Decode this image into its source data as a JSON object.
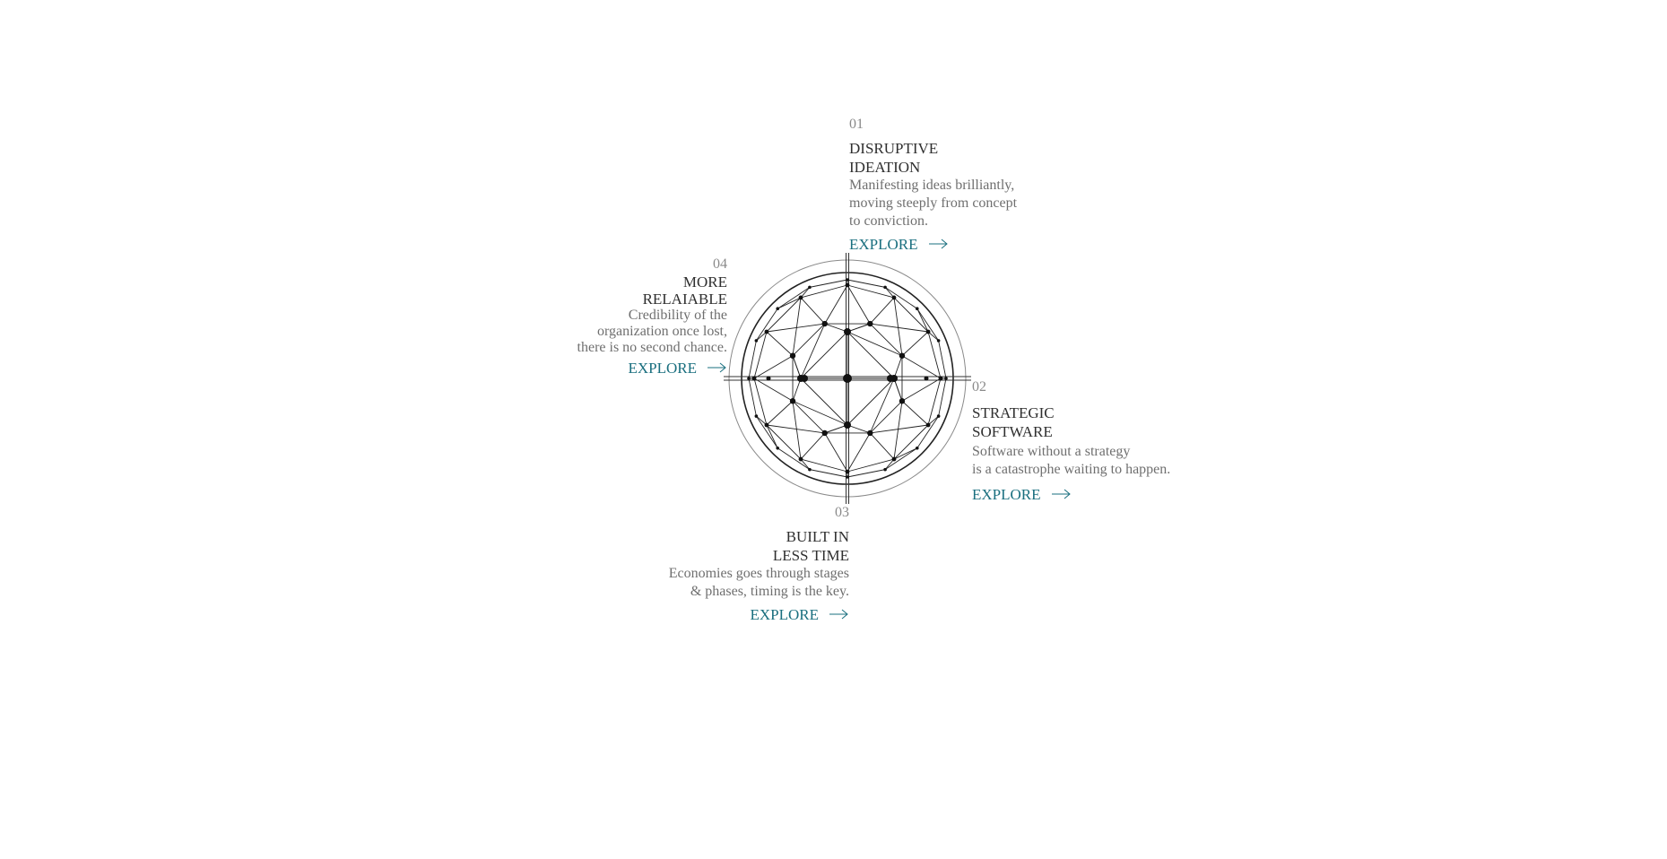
{
  "sections": [
    {
      "number": "01",
      "title": "DISRUPTIVE\nIDEATION",
      "description": "Manifesting ideas brilliantly,\nmoving steeply from concept\nto conviction.",
      "cta": "EXPLORE"
    },
    {
      "number": "02",
      "title": "STRATEGIC\nSOFTWARE",
      "description": "Software without a strategy\nis a catastrophe waiting to happen.",
      "cta": "EXPLORE"
    },
    {
      "number": "03",
      "title": "BUILT IN\nLESS TIME",
      "description": "Economies goes through stages\n& phases, timing is the key.",
      "cta": "EXPLORE"
    },
    {
      "number": "04",
      "title": "MORE\nRELAIABLE",
      "description": "Credibility of the\norganization once lost,\nthere is no second chance.",
      "cta": "EXPLORE"
    }
  ],
  "colors": {
    "accent": "#1a6f7f",
    "title": "#2f2f2f",
    "text": "#6f6f6f",
    "number": "#8a8a8a"
  },
  "icons": {
    "arrow": "arrow-right-icon",
    "graphic": "geodesic-sphere-icon"
  }
}
